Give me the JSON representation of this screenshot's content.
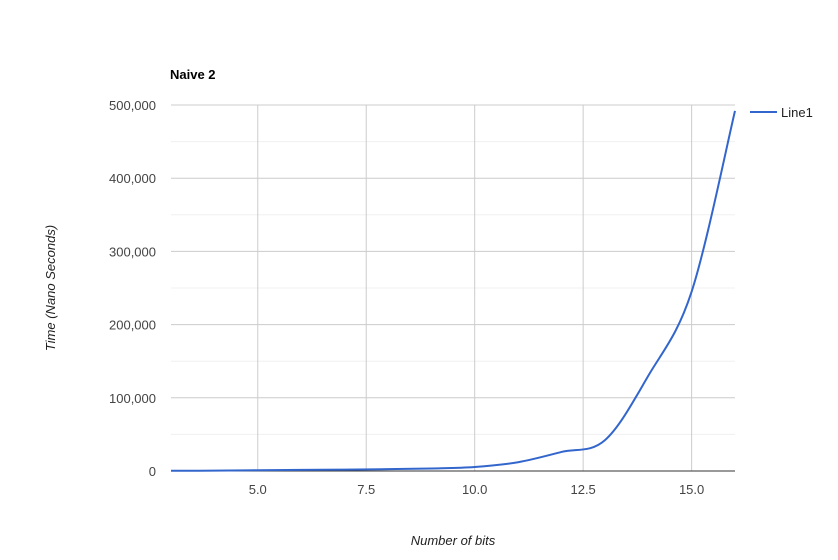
{
  "chart_data": {
    "type": "line",
    "title": "Naive 2",
    "xlabel": "Number of bits",
    "ylabel": "Time (Nano Seconds)",
    "xlim": [
      3,
      16
    ],
    "ylim": [
      0,
      500000
    ],
    "x_ticks": [
      5.0,
      7.5,
      10.0,
      12.5,
      15.0
    ],
    "x_tick_labels": [
      "5.0",
      "7.5",
      "10.0",
      "12.5",
      "15.0"
    ],
    "y_ticks": [
      0,
      100000,
      200000,
      300000,
      400000,
      500000
    ],
    "y_tick_labels": [
      "0",
      "100,000",
      "200,000",
      "300,000",
      "400,000",
      "500,000"
    ],
    "grid": true,
    "legend_position": "right",
    "series": [
      {
        "name": "Line1",
        "color": "#3366cc",
        "x": [
          3,
          4,
          5,
          6,
          7,
          8,
          9,
          10,
          11,
          12,
          13,
          14,
          15,
          16
        ],
        "y": [
          300,
          500,
          1000,
          1500,
          1800,
          2500,
          3500,
          5500,
          12000,
          26000,
          42000,
          130000,
          245000,
          492000
        ]
      }
    ]
  }
}
